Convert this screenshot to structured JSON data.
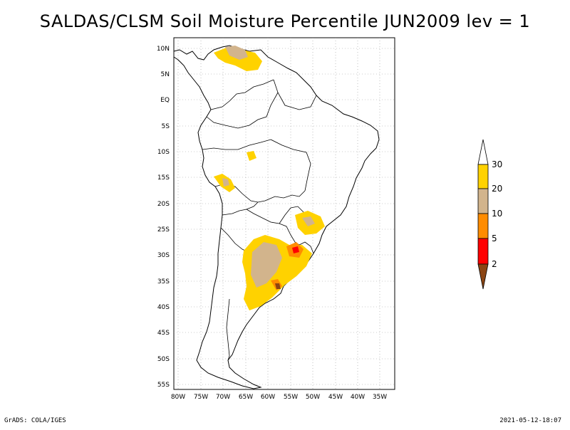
{
  "title": "SALDAS/CLSM Soil Moisture Percentile JUN2009 lev = 1",
  "footer": {
    "left": "GrADS: COLA/IGES",
    "right": "2021-05-12-18:07"
  },
  "map": {
    "lat_ticks": [
      "10N",
      "5N",
      "EQ",
      "5S",
      "10S",
      "15S",
      "20S",
      "25S",
      "30S",
      "35S",
      "40S",
      "45S",
      "50S",
      "55S"
    ],
    "lon_ticks": [
      "80W",
      "75W",
      "70W",
      "65W",
      "60W",
      "55W",
      "50W",
      "45W",
      "40W",
      "35W"
    ],
    "grid": true,
    "region": "South America"
  },
  "colorbar": {
    "labels": [
      "30",
      "20",
      "10",
      "5",
      "2"
    ],
    "colors": {
      "above30": "#ffffff",
      "20-30": "#ffd200",
      "10-20": "#d2b48c",
      "5-10": "#ff8c00",
      "2-5": "#ff0000",
      "below2": "#8b4513"
    }
  }
}
